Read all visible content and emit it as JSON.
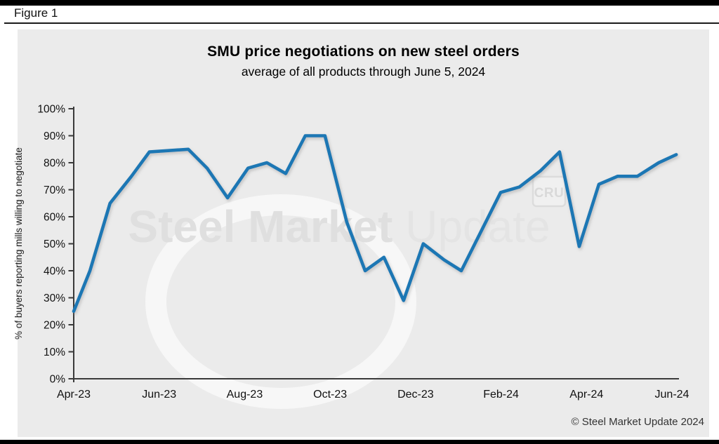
{
  "figure_label": "Figure 1",
  "footer": {
    "copyright": "© Steel Market Update 2024"
  },
  "watermark": {
    "text_bold": "Steel Market",
    "text_light": "Update",
    "logo": "CRU"
  },
  "colors": {
    "line": "#1f77b4",
    "panel": "#ebebeb",
    "axis": "#3a3a3a",
    "tick_text": "#111111",
    "watermark": "#dfdfdf"
  },
  "chart_data": {
    "type": "line",
    "title": "SMU price negotiations on new steel orders",
    "subtitle": "average of all products through June 5, 2024",
    "ylabel": "% of buyers reporting mills willing to negotiate",
    "xlabel": "",
    "ylim": [
      0,
      100
    ],
    "y_tick_step": 10,
    "y_tick_labels": [
      "0%",
      "10%",
      "20%",
      "30%",
      "40%",
      "50%",
      "60%",
      "70%",
      "80%",
      "90%",
      "100%"
    ],
    "x_unit": "months since Apr-2023",
    "x_ticks": [
      {
        "label": "Apr-23",
        "m": 0
      },
      {
        "label": "Jun-23",
        "m": 2
      },
      {
        "label": "Aug-23",
        "m": 4
      },
      {
        "label": "Oct-23",
        "m": 6
      },
      {
        "label": "Dec-23",
        "m": 8
      },
      {
        "label": "Feb-24",
        "m": 10
      },
      {
        "label": "Apr-24",
        "m": 12
      },
      {
        "label": "Jun-24",
        "m": 14
      }
    ],
    "grid": false,
    "legend": "none",
    "series": [
      {
        "name": "% of buyers reporting mills willing to negotiate",
        "color": "#1f77b4",
        "points": [
          {
            "m": 0.0,
            "v": 25
          },
          {
            "m": 0.38,
            "v": 40
          },
          {
            "m": 0.85,
            "v": 65
          },
          {
            "m": 1.35,
            "v": 75
          },
          {
            "m": 1.77,
            "v": 84
          },
          {
            "m": 2.22,
            "v": 84.5
          },
          {
            "m": 2.68,
            "v": 85
          },
          {
            "m": 3.12,
            "v": 78
          },
          {
            "m": 3.6,
            "v": 67
          },
          {
            "m": 4.08,
            "v": 78
          },
          {
            "m": 4.52,
            "v": 80
          },
          {
            "m": 4.96,
            "v": 76
          },
          {
            "m": 5.42,
            "v": 90
          },
          {
            "m": 5.88,
            "v": 90
          },
          {
            "m": 6.39,
            "v": 58
          },
          {
            "m": 6.82,
            "v": 40
          },
          {
            "m": 7.26,
            "v": 45
          },
          {
            "m": 7.72,
            "v": 29
          },
          {
            "m": 8.18,
            "v": 50
          },
          {
            "m": 8.67,
            "v": 44
          },
          {
            "m": 9.07,
            "v": 40
          },
          {
            "m": 9.99,
            "v": 69
          },
          {
            "m": 10.43,
            "v": 71
          },
          {
            "m": 10.92,
            "v": 77
          },
          {
            "m": 11.37,
            "v": 84
          },
          {
            "m": 11.83,
            "v": 49
          },
          {
            "m": 12.29,
            "v": 72
          },
          {
            "m": 12.73,
            "v": 75
          },
          {
            "m": 13.19,
            "v": 75
          },
          {
            "m": 13.69,
            "v": 80
          },
          {
            "m": 14.1,
            "v": 83
          }
        ]
      }
    ]
  }
}
